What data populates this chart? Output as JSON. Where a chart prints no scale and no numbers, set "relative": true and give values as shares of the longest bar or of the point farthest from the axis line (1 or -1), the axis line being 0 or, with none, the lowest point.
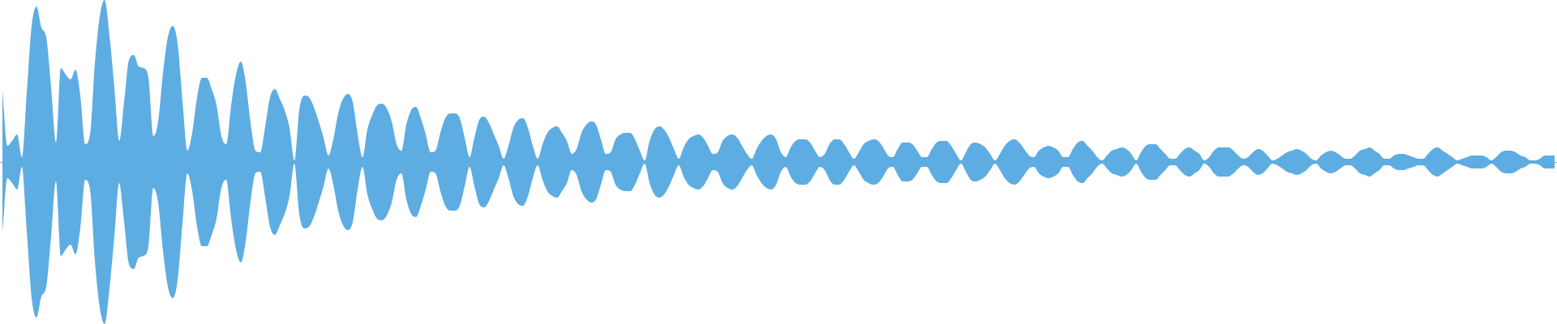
{
  "chart_data": {
    "type": "area",
    "relative": true,
    "categories": [
      null,
      null,
      null,
      null,
      null,
      null,
      null,
      null,
      null,
      null,
      null,
      null,
      null,
      null,
      null,
      null,
      null,
      null,
      null,
      null,
      null,
      null,
      null,
      null,
      null,
      null,
      null,
      null,
      null,
      null,
      null,
      null,
      null,
      null,
      null,
      null,
      null,
      null,
      null,
      null,
      null,
      null,
      null,
      null,
      null,
      null,
      null,
      null,
      null,
      null,
      null,
      null,
      null,
      null,
      null,
      null,
      null,
      null,
      null,
      null,
      null,
      null,
      null,
      null,
      null,
      null,
      null,
      null,
      null,
      null,
      null,
      null,
      null,
      null,
      null,
      null,
      null,
      null,
      null,
      null,
      null,
      null,
      null,
      null,
      null,
      null,
      null,
      null,
      null,
      null,
      null,
      null,
      null,
      null,
      null,
      null,
      null,
      null,
      null,
      null,
      null,
      null,
      null,
      null,
      null,
      null,
      null,
      null,
      null,
      null,
      null,
      null,
      null,
      null,
      null,
      null,
      null,
      null,
      null,
      null,
      null,
      null,
      null,
      null,
      null,
      null,
      null,
      null,
      null,
      null,
      null,
      null,
      null,
      null,
      null,
      null,
      null,
      null,
      null,
      null,
      null,
      null,
      null,
      null,
      null,
      null,
      null,
      null,
      null,
      null,
      null,
      null,
      null,
      null,
      null,
      null,
      null,
      null,
      null,
      null,
      null,
      null,
      null,
      null,
      null,
      null,
      null,
      null,
      null,
      null,
      null,
      null,
      null,
      null,
      null,
      null,
      null,
      null,
      null,
      null,
      null,
      null,
      null,
      null,
      null,
      null,
      null,
      null,
      null,
      null,
      null,
      null,
      null,
      null,
      null,
      null,
      null,
      null,
      null,
      null,
      null,
      null,
      null,
      null,
      null,
      null,
      null,
      null,
      null,
      null,
      null,
      null,
      null,
      null,
      null,
      null,
      null,
      null,
      null,
      null,
      null,
      null,
      null,
      null,
      null,
      null,
      null,
      null,
      null,
      null,
      null,
      null,
      null,
      null,
      null,
      null,
      null,
      null,
      null,
      null,
      null,
      null,
      null,
      null,
      null,
      null,
      null,
      null,
      null,
      null,
      null,
      null,
      null,
      null,
      null,
      null,
      null,
      null,
      null,
      null,
      null,
      null,
      null,
      null,
      null,
      null,
      null,
      null,
      null,
      null,
      null,
      null,
      null,
      null,
      null,
      null,
      null,
      null,
      null,
      null,
      null,
      null,
      null,
      null,
      null,
      null,
      null,
      null,
      null,
      null,
      null,
      null,
      null,
      null,
      null,
      null,
      null,
      null,
      null,
      null,
      null,
      null,
      null,
      null,
      null,
      null,
      null,
      null,
      null,
      null,
      null,
      null,
      null,
      null,
      null,
      null,
      null,
      null,
      null,
      null
    ],
    "series": [
      {
        "color": "#5dade2",
        "values": [
          0.44,
          0.1,
          0.13,
          0.17,
          0.03,
          0.43,
          0.84,
          0.96,
          0.83,
          0.77,
          0.46,
          0.12,
          0.58,
          0.54,
          0.51,
          0.57,
          0.41,
          0.11,
          0.17,
          0.61,
          0.9,
          1,
          0.78,
          0.46,
          0.13,
          0.37,
          0.63,
          0.66,
          0.59,
          0.58,
          0.52,
          0.16,
          0.25,
          0.55,
          0.77,
          0.84,
          0.73,
          0.38,
          0.07,
          0.18,
          0.4,
          0.52,
          0.52,
          0.45,
          0.35,
          0.16,
          0.11,
          0.35,
          0.54,
          0.62,
          0.49,
          0.24,
          0.07,
          0.06,
          0.22,
          0.4,
          0.45,
          0.39,
          0.32,
          0.21,
          0.01,
          0.32,
          0.41,
          0.4,
          0.34,
          0.25,
          0.15,
          0.04,
          0.14,
          0.3,
          0.39,
          0.42,
          0.37,
          0.17,
          0.03,
          0.2,
          0.29,
          0.35,
          0.36,
          0.33,
          0.25,
          0.11,
          0.07,
          0.23,
          0.32,
          0.34,
          0.27,
          0.17,
          0.06,
          0.07,
          0.18,
          0.27,
          0.3,
          0.3,
          0.27,
          0.15,
          0.03,
          0.15,
          0.26,
          0.28,
          0.24,
          0.17,
          0.1,
          0.02,
          0.1,
          0.21,
          0.26,
          0.27,
          0.21,
          0.1,
          0.02,
          0.11,
          0.18,
          0.21,
          0.22,
          0.18,
          0.13,
          0.05,
          0.08,
          0.18,
          0.23,
          0.25,
          0.23,
          0.14,
          0.05,
          0.06,
          0.14,
          0.17,
          0.18,
          0.18,
          0.14,
          0.07,
          0.01,
          0.13,
          0.2,
          0.22,
          0.2,
          0.15,
          0.08,
          0.02,
          0.09,
          0.14,
          0.16,
          0.17,
          0.15,
          0.1,
          0.05,
          0.06,
          0.13,
          0.16,
          0.17,
          0.15,
          0.1,
          0.05,
          0.02,
          0.08,
          0.13,
          0.16,
          0.17,
          0.14,
          0.06,
          0.03,
          0.09,
          0.13,
          0.14,
          0.14,
          0.12,
          0.07,
          0.03,
          0.05,
          0.11,
          0.14,
          0.14,
          0.11,
          0.06,
          0.02,
          0.06,
          0.11,
          0.13,
          0.14,
          0.13,
          0.09,
          0.04,
          0.03,
          0.08,
          0.12,
          0.12,
          0.11,
          0.07,
          0.03,
          0.03,
          0.08,
          0.12,
          0.13,
          0.13,
          0.1,
          0.05,
          0.01,
          0.06,
          0.11,
          0.12,
          0.11,
          0.09,
          0.05,
          0.01,
          0.05,
          0.1,
          0.13,
          0.14,
          0.12,
          0.08,
          0.04,
          0.03,
          0.07,
          0.09,
          0.1,
          0.09,
          0.07,
          0.03,
          0.03,
          0.08,
          0.12,
          0.13,
          0.1,
          0.07,
          0.03,
          0.01,
          0.04,
          0.07,
          0.08,
          0.09,
          0.08,
          0.05,
          0.01,
          0.06,
          0.1,
          0.11,
          0.11,
          0.08,
          0.05,
          0.02,
          0.02,
          0.05,
          0.08,
          0.09,
          0.07,
          0.05,
          0.01,
          0.03,
          0.07,
          0.09,
          0.09,
          0.09,
          0.07,
          0.04,
          0.02,
          0.03,
          0.06,
          0.08,
          0.07,
          0.04,
          0.01,
          0.02,
          0.04,
          0.06,
          0.07,
          0.08,
          0.07,
          0.05,
          0.02,
          0.01,
          0.04,
          0.06,
          0.07,
          0.06,
          0.04,
          0.02,
          0.02,
          0.04,
          0.07,
          0.08,
          0.09,
          0.07,
          0.05,
          0.02,
          0.02,
          0.04,
          0.05,
          0.05,
          0.04,
          0.03,
          0.02,
          0.02,
          0.05,
          0.08,
          0.09,
          0.07,
          0.05,
          0.03,
          0.01,
          0.02,
          0.03,
          0.04,
          0.04,
          0.04,
          0.03,
          0.01,
          0.03,
          0.06,
          0.07,
          0.07,
          0.06,
          0.04,
          0.03,
          0.01,
          0.01,
          0.02,
          0.04,
          0.04,
          0.04
        ]
      },
      {
        "color": "#5dade2",
        "values": [
          -0.44,
          -0.1,
          -0.13,
          -0.17,
          -0.03,
          -0.43,
          -0.84,
          -0.96,
          -0.83,
          -0.77,
          -0.46,
          -0.12,
          -0.58,
          -0.54,
          -0.51,
          -0.57,
          -0.41,
          -0.11,
          -0.17,
          -0.61,
          -0.9,
          -1,
          -0.78,
          -0.46,
          -0.13,
          -0.37,
          -0.63,
          -0.66,
          -0.59,
          -0.58,
          -0.52,
          -0.16,
          -0.25,
          -0.55,
          -0.77,
          -0.84,
          -0.73,
          -0.38,
          -0.07,
          -0.18,
          -0.4,
          -0.52,
          -0.52,
          -0.45,
          -0.35,
          -0.16,
          -0.11,
          -0.35,
          -0.54,
          -0.62,
          -0.49,
          -0.24,
          -0.07,
          -0.06,
          -0.22,
          -0.4,
          -0.45,
          -0.39,
          -0.32,
          -0.21,
          -0.01,
          -0.32,
          -0.41,
          -0.4,
          -0.34,
          -0.25,
          -0.15,
          -0.04,
          -0.14,
          -0.3,
          -0.39,
          -0.42,
          -0.37,
          -0.17,
          -0.03,
          -0.2,
          -0.29,
          -0.35,
          -0.36,
          -0.33,
          -0.25,
          -0.11,
          -0.07,
          -0.23,
          -0.32,
          -0.34,
          -0.27,
          -0.17,
          -0.06,
          -0.07,
          -0.18,
          -0.27,
          -0.3,
          -0.3,
          -0.27,
          -0.15,
          -0.03,
          -0.15,
          -0.26,
          -0.28,
          -0.24,
          -0.17,
          -0.1,
          -0.02,
          -0.1,
          -0.21,
          -0.26,
          -0.27,
          -0.21,
          -0.1,
          -0.02,
          -0.11,
          -0.18,
          -0.21,
          -0.22,
          -0.18,
          -0.13,
          -0.05,
          -0.08,
          -0.18,
          -0.23,
          -0.25,
          -0.23,
          -0.14,
          -0.05,
          -0.06,
          -0.14,
          -0.17,
          -0.18,
          -0.18,
          -0.14,
          -0.07,
          -0.01,
          -0.13,
          -0.2,
          -0.22,
          -0.2,
          -0.15,
          -0.08,
          -0.02,
          -0.09,
          -0.14,
          -0.16,
          -0.17,
          -0.15,
          -0.1,
          -0.05,
          -0.06,
          -0.13,
          -0.16,
          -0.17,
          -0.15,
          -0.1,
          -0.05,
          -0.02,
          -0.08,
          -0.13,
          -0.16,
          -0.17,
          -0.14,
          -0.06,
          -0.03,
          -0.09,
          -0.13,
          -0.14,
          -0.14,
          -0.12,
          -0.07,
          -0.03,
          -0.05,
          -0.11,
          -0.14,
          -0.14,
          -0.11,
          -0.06,
          -0.02,
          -0.06,
          -0.11,
          -0.13,
          -0.14,
          -0.13,
          -0.09,
          -0.04,
          -0.03,
          -0.08,
          -0.12,
          -0.12,
          -0.11,
          -0.07,
          -0.03,
          -0.03,
          -0.08,
          -0.12,
          -0.13,
          -0.13,
          -0.1,
          -0.05,
          -0.01,
          -0.06,
          -0.11,
          -0.12,
          -0.11,
          -0.09,
          -0.05,
          -0.01,
          -0.05,
          -0.1,
          -0.13,
          -0.14,
          -0.12,
          -0.08,
          -0.04,
          -0.03,
          -0.07,
          -0.09,
          -0.1,
          -0.09,
          -0.07,
          -0.03,
          -0.03,
          -0.08,
          -0.12,
          -0.13,
          -0.1,
          -0.07,
          -0.03,
          -0.01,
          -0.04,
          -0.07,
          -0.08,
          -0.09,
          -0.08,
          -0.05,
          -0.01,
          -0.06,
          -0.1,
          -0.11,
          -0.11,
          -0.08,
          -0.05,
          -0.02,
          -0.02,
          -0.05,
          -0.08,
          -0.09,
          -0.07,
          -0.05,
          -0.01,
          -0.03,
          -0.07,
          -0.09,
          -0.09,
          -0.09,
          -0.07,
          -0.04,
          -0.02,
          -0.03,
          -0.06,
          -0.08,
          -0.07,
          -0.04,
          -0.01,
          -0.02,
          -0.04,
          -0.06,
          -0.07,
          -0.08,
          -0.07,
          -0.05,
          -0.02,
          -0.01,
          -0.04,
          -0.06,
          -0.07,
          -0.06,
          -0.04,
          -0.02,
          -0.02,
          -0.04,
          -0.07,
          -0.08,
          -0.09,
          -0.07,
          -0.05,
          -0.02,
          -0.02,
          -0.04,
          -0.05,
          -0.05,
          -0.04,
          -0.03,
          -0.02,
          -0.02,
          -0.05,
          -0.08,
          -0.09,
          -0.07,
          -0.05,
          -0.03,
          -0.01,
          -0.02,
          -0.03,
          -0.04,
          -0.04,
          -0.04,
          -0.03,
          -0.01,
          -0.03,
          -0.06,
          -0.07,
          -0.07,
          -0.06,
          -0.04,
          -0.03,
          -0.01,
          -0.01,
          -0.02,
          -0.04,
          -0.04,
          -0.04
        ]
      }
    ]
  }
}
